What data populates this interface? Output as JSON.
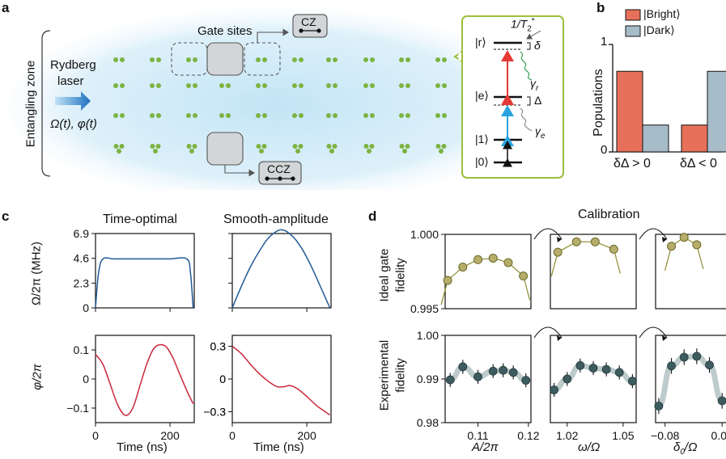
{
  "panel_letters": {
    "a": "a",
    "b": "b",
    "c": "c",
    "d": "d"
  },
  "panel_a": {
    "zone_label": "Entangling zone",
    "laser_label_1": "Rydberg",
    "laser_label_2": "laser",
    "laser_params": "Ω(t), φ(t)",
    "gate_sites_label": "Gate sites",
    "cz_label": "CZ",
    "ccz_label": "CCZ",
    "level_r": "|r⟩",
    "level_e": "|e⟩",
    "level_1": "|1⟩",
    "level_0": "|0⟩",
    "delta_small": "δ",
    "delta_big": "Δ",
    "gamma_r": "γ",
    "gamma_r_sub": "r",
    "gamma_e": "γ",
    "gamma_e_sub": "e",
    "t2_label": "1/T",
    "t2_sub": "2",
    "t2_sup": "*",
    "colors": {
      "atom": "#7cb342",
      "glow": "#bfe3f5",
      "red_arrow": "#e53935",
      "blue_arrow": "#29a3e0",
      "bracket": "#9bbf3c"
    }
  },
  "panel_b": {
    "ylabel": "Populations",
    "ytick_1": "1",
    "ytick_0": "0",
    "legend_bright": "|Bright⟩",
    "legend_dark": "|Dark⟩",
    "cat_1": "δΔ > 0",
    "cat_2": "δΔ < 0",
    "colors": {
      "bright": "#e8705a",
      "dark": "#a7bcc9"
    }
  },
  "panel_c": {
    "title_left": "Time-optimal",
    "title_right": "Smooth-amplitude",
    "ylabel_top": "Ω/2π (MHz)",
    "ylabel_bottom": "φ/2π",
    "xlabel": "Time (ns)",
    "yticks_top": [
      "6.9",
      "4.6",
      "2.3",
      "0"
    ],
    "yticks_bl": [
      "0.1",
      "0",
      "−0.1"
    ],
    "yticks_br": [
      "0.3",
      "0",
      "−0.3"
    ],
    "xticks": [
      "0",
      "200"
    ],
    "colors": {
      "amplitude": "#1f5a96",
      "phase": "#c9263b"
    }
  },
  "panel_d": {
    "calibration_label": "Calibration",
    "ylabel_top_1": "Ideal gate",
    "ylabel_top_2": "fidelity",
    "ylabel_bottom_1": "Experimental",
    "ylabel_bottom_2": "fidelity",
    "yticks_top": [
      "1.000",
      "0.995"
    ],
    "yticks_bottom": [
      "1.00",
      "0.99",
      "0.98"
    ],
    "xticks_1": [
      "0.11",
      "0.12"
    ],
    "xticks_2": [
      "1.02",
      "1.05"
    ],
    "xticks_3": [
      "−0.08",
      "0.01"
    ],
    "xlabel_1": "A/2π",
    "xlabel_2": "ω/Ω",
    "xlabel_3_main": "δ",
    "xlabel_3_sub": "0",
    "xlabel_3_tail": "/Ω",
    "colors": {
      "ideal": "#b6ad6a",
      "ideal_line": "#8c8a2e",
      "exp": "#3e5c60",
      "exp_band": "#b7c5c6"
    }
  },
  "chart_data": [
    {
      "type": "bar",
      "categories": [
        "δΔ > 0",
        "δΔ < 0"
      ],
      "series": [
        {
          "name": "|Bright⟩",
          "values": [
            0.75,
            0.25
          ]
        },
        {
          "name": "|Dark⟩",
          "values": [
            0.25,
            0.75
          ]
        }
      ],
      "ylabel": "Populations",
      "ylim": [
        0,
        1
      ],
      "legend": "top-left"
    },
    {
      "type": "line",
      "title": "Time-optimal",
      "xlabel": "Time (ns)",
      "ylabel": "Ω/2π (MHz)",
      "x": [
        0,
        8,
        20,
        50,
        100,
        150,
        200,
        245,
        255,
        262
      ],
      "y": [
        0,
        3.2,
        4.55,
        4.55,
        4.55,
        4.55,
        4.55,
        4.55,
        3.2,
        0
      ],
      "xlim": [
        0,
        265
      ],
      "ylim": [
        0,
        6.9
      ]
    },
    {
      "type": "line",
      "title": "Smooth-amplitude",
      "xlabel": "Time (ns)",
      "ylabel": "Ω/2π (MHz)",
      "x": [
        0,
        25,
        50,
        75,
        100,
        131,
        160,
        185,
        210,
        235,
        262
      ],
      "y": [
        0,
        2.05,
        3.9,
        5.4,
        6.6,
        7.25,
        6.7,
        5.6,
        4.0,
        2.1,
        0
      ],
      "xlim": [
        0,
        265
      ],
      "ylim": [
        0,
        6.9
      ]
    },
    {
      "type": "line",
      "xlabel": "Time (ns)",
      "ylabel": "φ/2π",
      "x": [
        0,
        20,
        40,
        60,
        80,
        100,
        120,
        140,
        160,
        185,
        205,
        225,
        245,
        262
      ],
      "y": [
        0.085,
        0.05,
        -0.02,
        -0.09,
        -0.125,
        -0.1,
        -0.02,
        0.06,
        0.11,
        0.115,
        0.08,
        0.02,
        -0.04,
        -0.085
      ],
      "xlim": [
        0,
        265
      ],
      "ylim": [
        -0.15,
        0.15
      ]
    },
    {
      "type": "line",
      "xlabel": "Time (ns)",
      "ylabel": "φ/2π",
      "x": [
        0,
        25,
        50,
        75,
        100,
        120,
        140,
        155,
        175,
        200,
        225,
        245,
        262
      ],
      "y": [
        0.3,
        0.23,
        0.13,
        0.04,
        -0.03,
        -0.07,
        -0.07,
        -0.06,
        -0.09,
        -0.16,
        -0.24,
        -0.29,
        -0.33
      ],
      "xlim": [
        0,
        265
      ],
      "ylim": [
        -0.4,
        0.4
      ]
    },
    {
      "type": "scatter",
      "ylabel": "Ideal gate fidelity",
      "x": [
        0.104,
        0.107,
        0.11,
        0.113,
        0.116,
        0.119
      ],
      "y": [
        0.9969,
        0.9978,
        0.9983,
        0.9984,
        0.9981,
        0.9972
      ],
      "ylim": [
        0.995,
        1.0
      ]
    },
    {
      "type": "scatter",
      "ylabel": "Ideal gate fidelity",
      "x": [
        1.015,
        1.025,
        1.035,
        1.045
      ],
      "y": [
        0.9988,
        0.9995,
        0.9995,
        0.999
      ],
      "ylim": [
        0.995,
        1.0
      ]
    },
    {
      "type": "scatter",
      "ylabel": "Ideal gate fidelity",
      "x": [
        -0.07,
        -0.05,
        -0.03
      ],
      "y": [
        0.9992,
        0.9998,
        0.9993
      ],
      "ylim": [
        0.995,
        1.0
      ]
    },
    {
      "type": "scatter",
      "xlabel": "A/2π",
      "ylabel": "Experimental fidelity",
      "x": [
        0.1045,
        0.107,
        0.11,
        0.113,
        0.115,
        0.117,
        0.1195
      ],
      "y": [
        0.9898,
        0.9928,
        0.9905,
        0.9918,
        0.992,
        0.9915,
        0.9897
      ],
      "error": 0.0016,
      "ylim": [
        0.98,
        1.0
      ]
    },
    {
      "type": "scatter",
      "xlabel": "ω/Ω",
      "ylabel": "Experimental fidelity",
      "x": [
        1.013,
        1.02,
        1.027,
        1.034,
        1.041,
        1.048,
        1.055
      ],
      "y": [
        0.9875,
        0.99,
        0.9931,
        0.9925,
        0.9922,
        0.9915,
        0.9895
      ],
      "error": 0.0016,
      "ylim": [
        0.98,
        1.0
      ]
    },
    {
      "type": "scatter",
      "xlabel": "δ0/Ω",
      "ylabel": "Experimental fidelity",
      "x": [
        -0.09,
        -0.07,
        -0.05,
        -0.03,
        -0.01,
        0.01
      ],
      "y": [
        0.9838,
        0.993,
        0.995,
        0.9952,
        0.9932,
        0.985
      ],
      "error": 0.0018,
      "ylim": [
        0.98,
        1.0
      ]
    }
  ]
}
